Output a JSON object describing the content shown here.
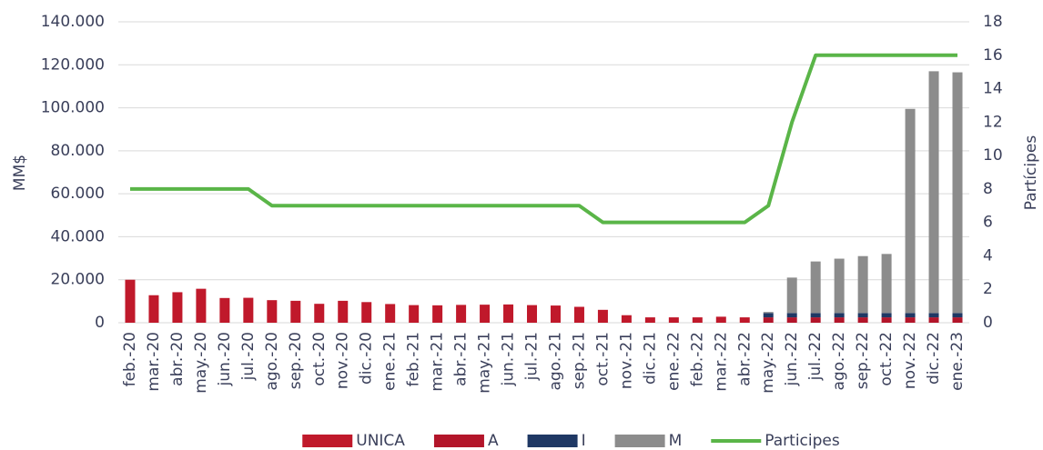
{
  "chart_data": {
    "type": "bar",
    "stacked": true,
    "categories": [
      "feb.-20",
      "mar.-20",
      "abr.-20",
      "may.-20",
      "jun.-20",
      "jul.-20",
      "ago.-20",
      "sep.-20",
      "oct.-20",
      "nov.-20",
      "dic.-20",
      "ene.-21",
      "feb.-21",
      "mar.-21",
      "abr.-21",
      "may.-21",
      "jun.-21",
      "jul.-21",
      "ago.-21",
      "sep.-21",
      "oct.-21",
      "nov.-21",
      "dic.-21",
      "ene.-22",
      "feb.-22",
      "mar.-22",
      "abr.-22",
      "may.-22",
      "jun.-22",
      "jul.-22",
      "ago.-22",
      "sep.-22",
      "oct.-22",
      "nov.-22",
      "dic.-22",
      "ene.-23"
    ],
    "series": [
      {
        "name": "UNICA",
        "color": "#c0192b",
        "values": [
          20000,
          12800,
          14200,
          15800,
          11500,
          11600,
          10500,
          10200,
          8800,
          10200,
          9600,
          8700,
          8200,
          8100,
          8300,
          8400,
          8500,
          8200,
          8000,
          7400,
          6000,
          3500,
          2500,
          2500,
          2500,
          2800,
          2500,
          null,
          null,
          null,
          null,
          null,
          null,
          null,
          null,
          null
        ]
      },
      {
        "name": "A",
        "color": "#b3152a",
        "values": [
          null,
          null,
          null,
          null,
          null,
          null,
          null,
          null,
          null,
          null,
          null,
          null,
          null,
          null,
          null,
          null,
          null,
          null,
          null,
          null,
          null,
          null,
          null,
          null,
          null,
          null,
          null,
          2500,
          2500,
          2500,
          2500,
          2500,
          2500,
          2500,
          2500,
          2500
        ]
      },
      {
        "name": "I",
        "color": "#1f3864",
        "values": [
          null,
          null,
          null,
          null,
          null,
          null,
          null,
          null,
          null,
          null,
          null,
          null,
          null,
          null,
          null,
          null,
          null,
          null,
          null,
          null,
          null,
          null,
          null,
          null,
          null,
          null,
          null,
          2000,
          2000,
          2000,
          2000,
          2000,
          2000,
          2000,
          2000,
          2000
        ]
      },
      {
        "name": "M",
        "color": "#8c8c8c",
        "values": [
          null,
          null,
          null,
          null,
          null,
          null,
          null,
          null,
          null,
          null,
          null,
          null,
          null,
          null,
          null,
          null,
          null,
          null,
          null,
          null,
          null,
          null,
          null,
          null,
          null,
          null,
          null,
          500,
          16500,
          24000,
          25300,
          26500,
          27500,
          95000,
          112500,
          112000
        ]
      },
      {
        "name": "Participes",
        "color": "#5ab548",
        "type": "line",
        "axis": "y2",
        "values": [
          8,
          8,
          8,
          8,
          8,
          8,
          7,
          7,
          7,
          7,
          7,
          7,
          7,
          7,
          7,
          7,
          7,
          7,
          7,
          7,
          6,
          6,
          6,
          6,
          6,
          6,
          6,
          7,
          12,
          16,
          16,
          16,
          16,
          16,
          16,
          16
        ]
      }
    ],
    "ylabel": "MM$",
    "y2label": "Partícipes",
    "ylim": [
      0,
      140000
    ],
    "yticks": [
      0,
      {
        "value": 20000,
        "label": "20.000"
      },
      {
        "value": 40000,
        "label": "40.000"
      },
      {
        "value": 60000,
        "label": "60.000"
      },
      {
        "value": 80000,
        "label": "80.000"
      },
      {
        "value": 100000,
        "label": "100.000"
      },
      {
        "value": 120000,
        "label": "120.000"
      },
      {
        "value": 140000,
        "label": "140.000"
      }
    ],
    "y2lim": [
      0,
      18
    ],
    "y2ticks": [
      0,
      2,
      4,
      6,
      8,
      10,
      12,
      14,
      16,
      18
    ],
    "grid": true,
    "legend": "bottom"
  }
}
